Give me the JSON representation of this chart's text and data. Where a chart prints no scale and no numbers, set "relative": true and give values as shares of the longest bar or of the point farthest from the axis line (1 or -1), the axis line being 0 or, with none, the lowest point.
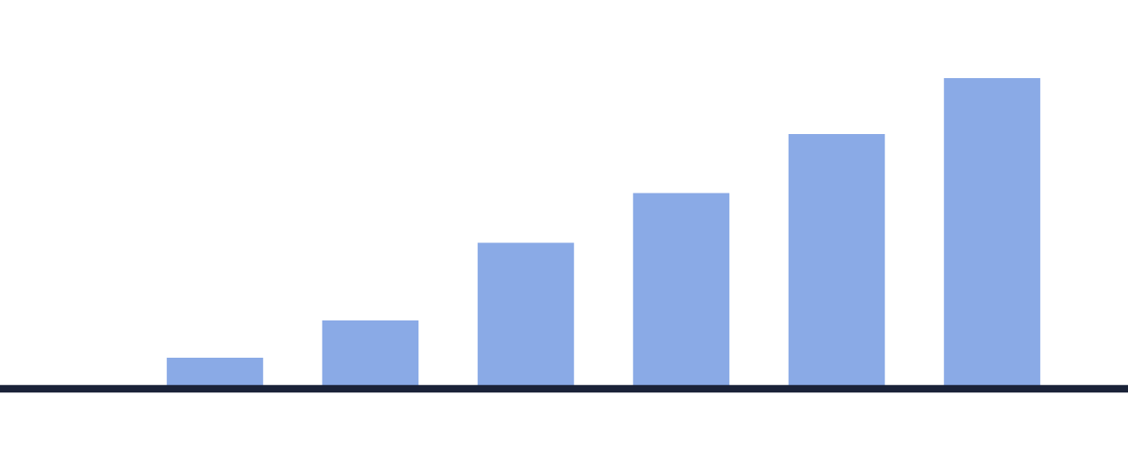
{
  "chart_data": {
    "type": "bar",
    "relative": true,
    "categories": [
      null,
      null,
      null,
      null,
      null,
      null
    ],
    "values": [
      0.1,
      0.22,
      0.47,
      0.63,
      0.82,
      1
    ],
    "color": "#8aaae6",
    "grid": false,
    "legend": false
  }
}
